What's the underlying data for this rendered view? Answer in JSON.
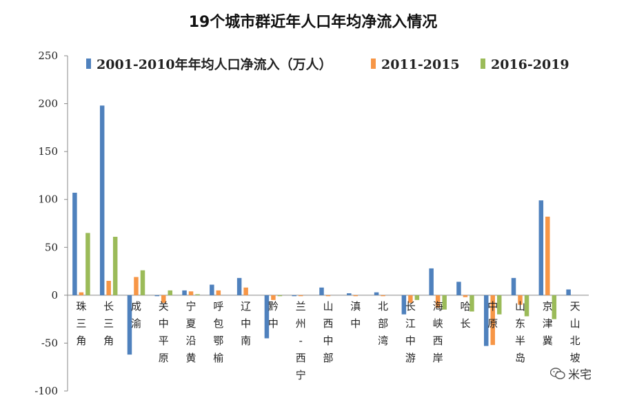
{
  "chart_data": {
    "type": "bar",
    "title": "19个城市群近年人口年均净流入情况",
    "ylim": [
      -100,
      250
    ],
    "yticks": [
      250,
      200,
      150,
      100,
      50,
      0,
      -50,
      -100
    ],
    "grid": false,
    "legend_position": "top",
    "categories": [
      "珠三角",
      "长三角",
      "成渝",
      "关中平原",
      "宁夏沿黄",
      "呼包鄂榆",
      "辽中南",
      "黔中",
      "兰州-西宁",
      "山西中部",
      "滇中",
      "北部湾",
      "长江中游",
      "海峡西岸",
      "哈长",
      "中原",
      "山东半岛",
      "京津冀",
      "天山北坡"
    ],
    "series": [
      {
        "name": "2001-2010年年均人口净流入（万人）",
        "color": "#4F81BD",
        "values": [
          107,
          198,
          -62,
          -1,
          5,
          11,
          18,
          -45,
          -1,
          8,
          2,
          3,
          -20,
          28,
          14,
          -53,
          18,
          99,
          6
        ]
      },
      {
        "name": "2011-2015",
        "color": "#F79646",
        "values": [
          3,
          15,
          19,
          -8,
          4,
          5,
          8,
          -5,
          -1,
          -1,
          -1,
          -1,
          -8,
          -13,
          -2,
          -52,
          -10,
          82,
          0
        ]
      },
      {
        "name": "2016-2019",
        "color": "#9BBB59",
        "values": [
          65,
          61,
          26,
          5,
          1,
          0,
          0,
          -1,
          0,
          0,
          0,
          0,
          -5,
          -15,
          -17,
          -20,
          -22,
          -25,
          0
        ]
      }
    ]
  },
  "watermark": {
    "icon": "wechat-icon",
    "text": "米宅"
  }
}
